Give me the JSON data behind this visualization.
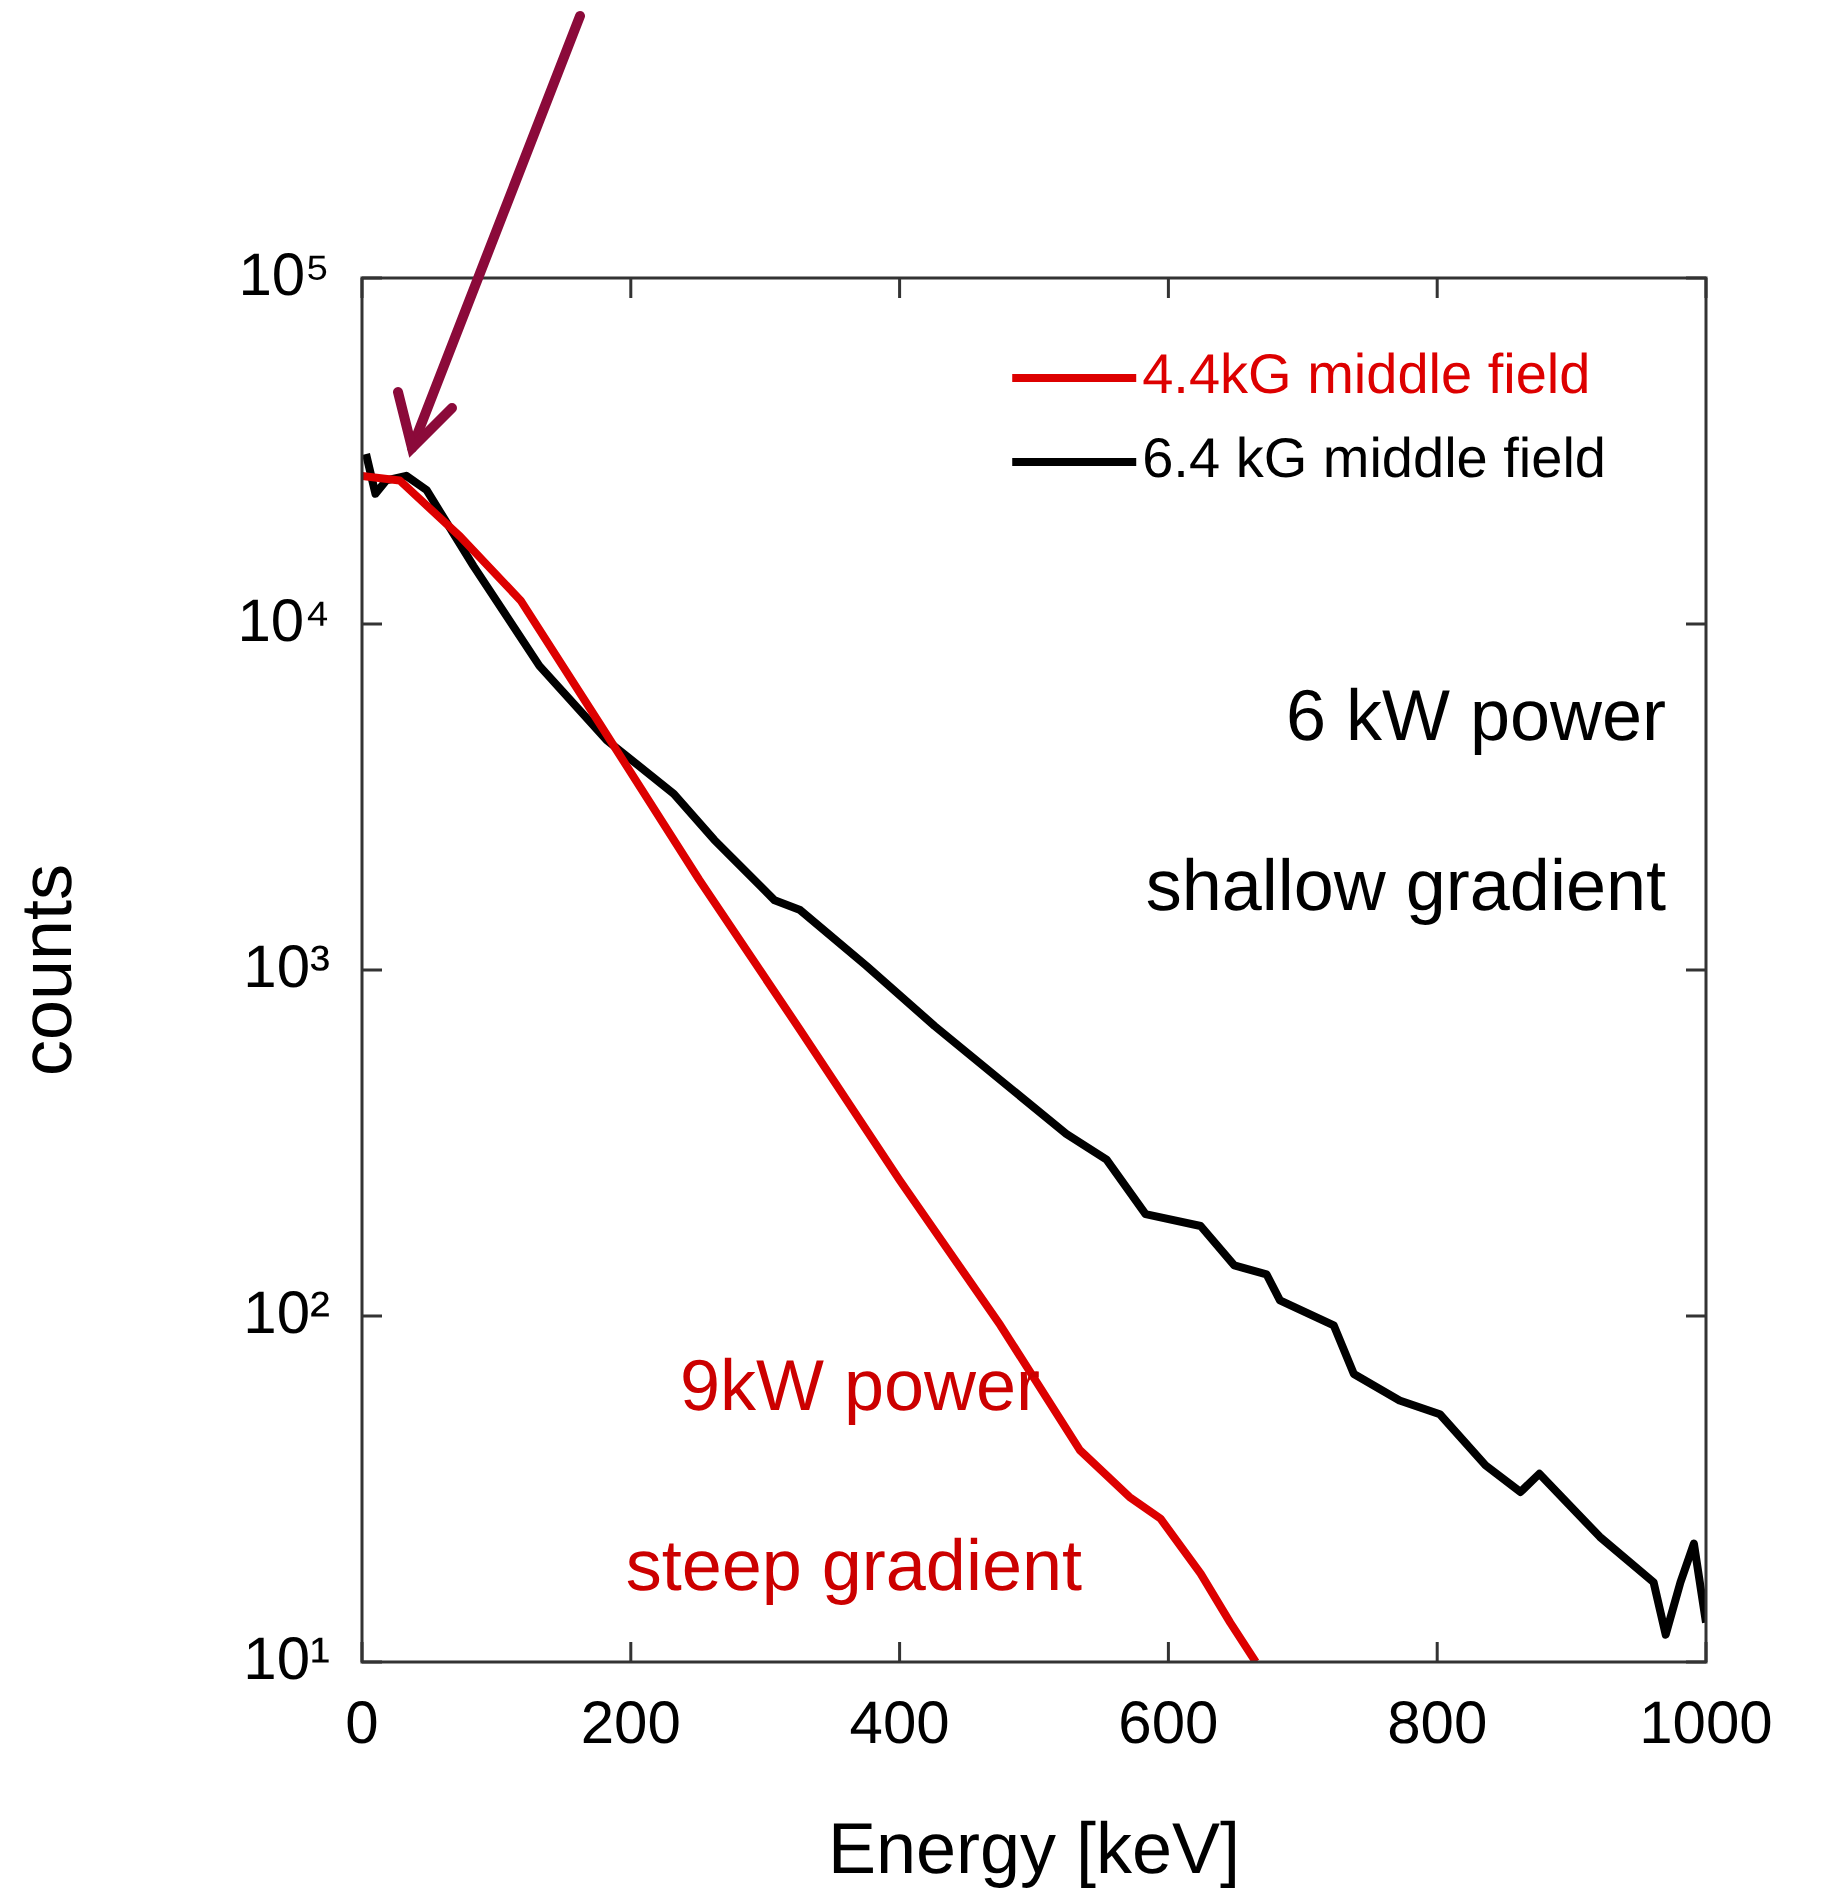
{
  "chart_data": {
    "type": "line",
    "xlabel": "Energy [keV]",
    "ylabel": "counts",
    "log": "y",
    "xlim": [
      0,
      1000
    ],
    "xticks": [
      0,
      200,
      400,
      600,
      800,
      1000
    ],
    "ylim": [
      10,
      100000
    ],
    "yticks": [
      {
        "value": 10,
        "label": "10¹"
      },
      {
        "value": 100,
        "label": "10²"
      },
      {
        "value": 1000,
        "label": "10³"
      },
      {
        "value": 10000,
        "label": "10⁴"
      },
      {
        "value": 100000,
        "label": "10⁵"
      }
    ],
    "legend": "top right",
    "marker": "none",
    "line_style": "solid",
    "annotations": [
      "6 kW power",
      "shallow gradient",
      "9kW power",
      "steep gradient"
    ],
    "series": [
      {
        "name": "4.4kG middle field",
        "color": "#dd0000",
        "x": [
          0,
          28,
          73,
          118,
          177,
          251,
          326,
          400,
          475,
          534,
          571,
          594,
          624,
          646,
          665
        ],
        "values": [
          26800,
          26000,
          17900,
          11700,
          5140,
          1820,
          671,
          247,
          94,
          41,
          30,
          26,
          18,
          13,
          10
        ]
      },
      {
        "name": "6.4 kG middle field",
        "color": "#000000",
        "x": [
          3,
          10,
          18,
          33,
          48,
          83,
          132,
          182,
          232,
          262,
          307,
          326,
          375,
          426,
          475,
          524,
          554,
          583,
          624,
          649,
          673,
          683,
          723,
          738,
          772,
          802,
          836,
          862,
          876,
          921,
          961,
          970,
          981,
          991,
          1000
        ],
        "values": [
          31000,
          23800,
          26000,
          26800,
          24400,
          14700,
          7570,
          4620,
          3230,
          2380,
          1590,
          1490,
          1030,
          689,
          481,
          336,
          283,
          197,
          182,
          140,
          132,
          111,
          94,
          68,
          57,
          52,
          37,
          31,
          35,
          23,
          17,
          12,
          17,
          22,
          13
        ]
      }
    ]
  }
}
